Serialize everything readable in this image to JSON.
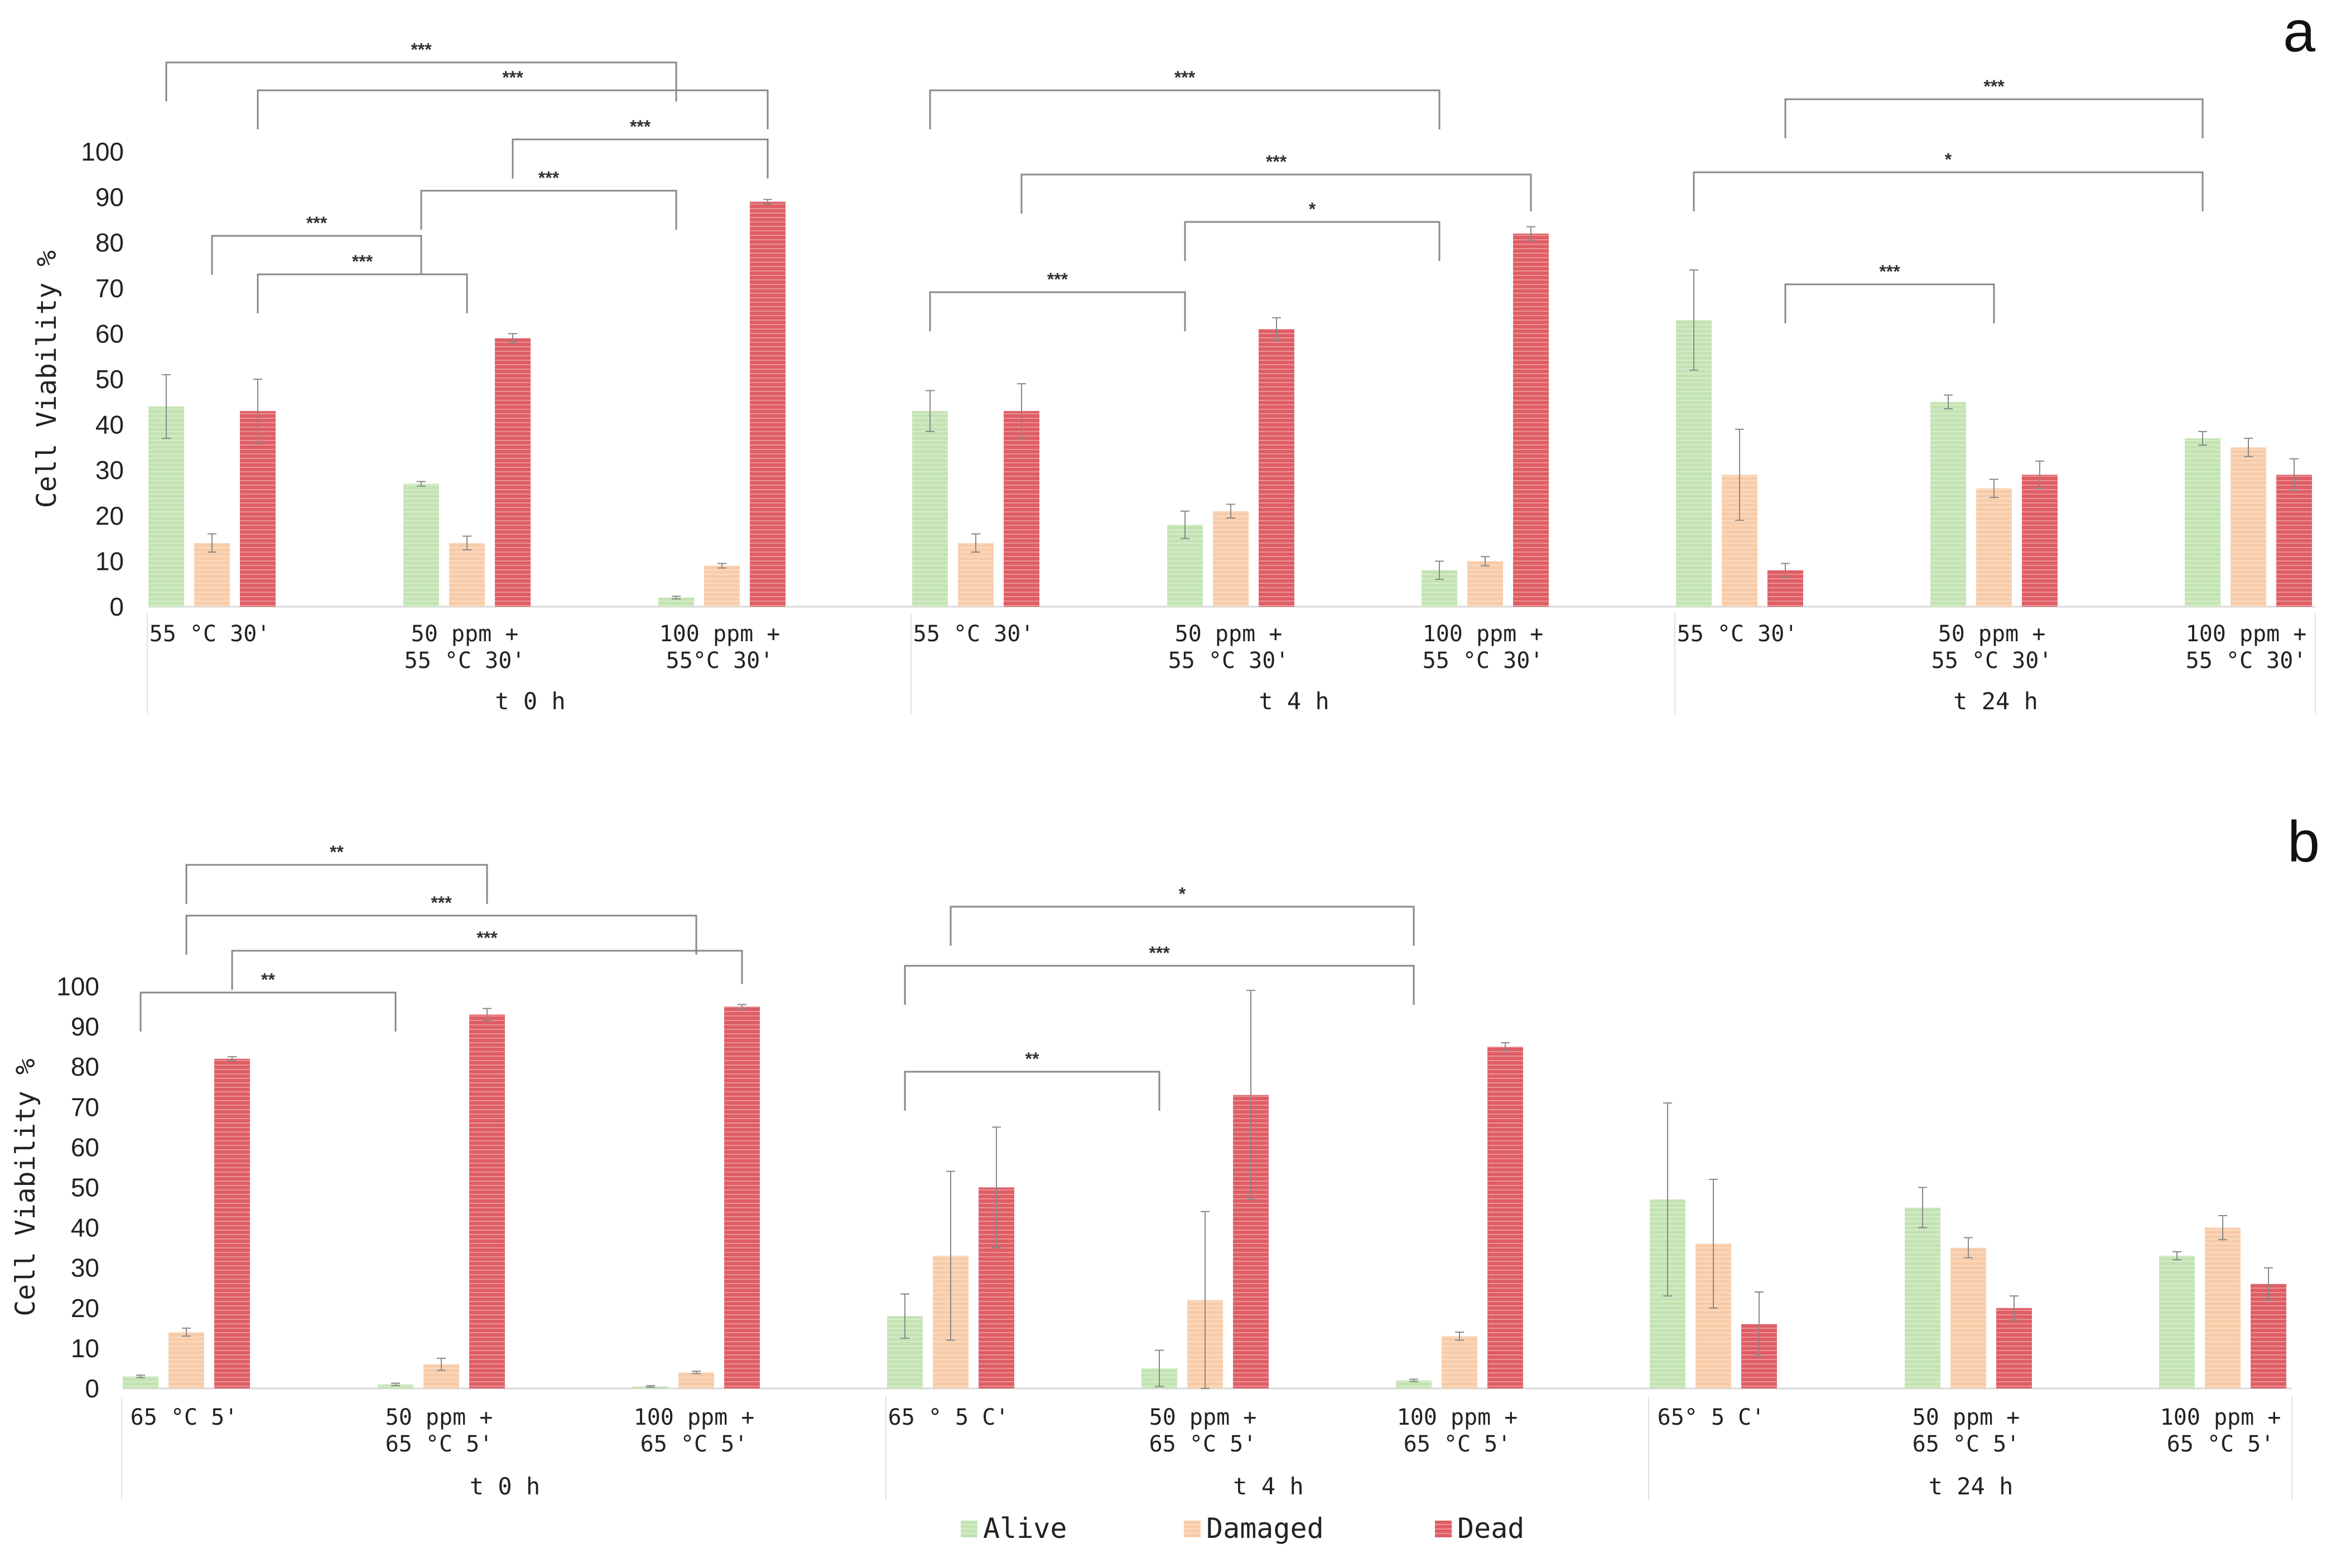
{
  "legend": {
    "items": [
      {
        "label": "Alive",
        "color": "#c4e3b3",
        "pattern": "alive"
      },
      {
        "label": "Damaged",
        "color": "#f8cca9",
        "pattern": "damaged"
      },
      {
        "label": "Dead",
        "color": "#de5e65",
        "pattern": "dead"
      }
    ]
  },
  "chart_data": [
    {
      "type": "bar",
      "panel": "a",
      "ylabel": "Cell Viability %",
      "ylim": [
        0,
        100
      ],
      "yticks": [
        "0",
        "10",
        "20",
        "30",
        "40",
        "50",
        "60",
        "70",
        "80",
        "90",
        "100"
      ],
      "groups": [
        {
          "label": "t 0 h",
          "categories": [
            [
              "55 °C 30'"
            ],
            [
              "50 ppm +",
              "55 °C 30'"
            ],
            [
              "100 ppm +",
              "55°C 30'"
            ]
          ]
        },
        {
          "label": "t 4 h",
          "categories": [
            [
              "55 °C 30'"
            ],
            [
              "50 ppm +",
              "55 °C 30'"
            ],
            [
              "100 ppm +",
              "55 °C 30'"
            ]
          ]
        },
        {
          "label": "t 24 h",
          "categories": [
            [
              "55 °C 30'"
            ],
            [
              "50 ppm +",
              "55 °C 30'"
            ],
            [
              "100 ppm +",
              "55 °C 30'"
            ]
          ]
        }
      ],
      "series": [
        {
          "name": "Alive",
          "values": [
            44,
            27,
            2,
            43,
            18,
            8,
            63,
            45,
            37
          ],
          "errors": [
            7,
            0.5,
            0.3,
            4.5,
            3,
            2,
            11,
            1.5,
            1.5
          ]
        },
        {
          "name": "Damaged",
          "values": [
            14,
            14,
            9,
            14,
            21,
            10,
            29,
            26,
            35
          ],
          "errors": [
            2,
            1.5,
            0.5,
            2,
            1.5,
            1,
            10,
            2,
            2
          ]
        },
        {
          "name": "Dead",
          "values": [
            43,
            59,
            89,
            43,
            61,
            82,
            8,
            29,
            29
          ],
          "errors": [
            7,
            1,
            0.5,
            6,
            2.5,
            1.5,
            1.5,
            3,
            3.5
          ]
        }
      ],
      "significance": [
        {
          "label": "***",
          "from": [
            0,
            "Alive"
          ],
          "to": [
            2,
            "Alive"
          ]
        },
        {
          "label": "***",
          "from": [
            0,
            "Dead"
          ],
          "to": [
            2,
            "Dead"
          ]
        },
        {
          "label": "***",
          "from": [
            1,
            "Dead"
          ],
          "to": [
            2,
            "Dead"
          ]
        },
        {
          "label": "***",
          "from": [
            1,
            "Alive"
          ],
          "to": [
            2,
            "Alive"
          ]
        },
        {
          "label": "***",
          "from": [
            0,
            "Damaged"
          ],
          "to": [
            1,
            "Alive"
          ]
        },
        {
          "label": "***",
          "from": [
            0,
            "Dead"
          ],
          "to": [
            1,
            "Damaged"
          ]
        },
        {
          "label": "***",
          "from": [
            3,
            "Alive"
          ],
          "to": [
            5,
            "Alive"
          ]
        },
        {
          "label": "***",
          "from": [
            3,
            "Dead"
          ],
          "to": [
            5,
            "Dead"
          ]
        },
        {
          "label": "*",
          "from": [
            4,
            "Alive"
          ],
          "to": [
            5,
            "Alive"
          ]
        },
        {
          "label": "***",
          "from": [
            3,
            "Alive"
          ],
          "to": [
            4,
            "Alive"
          ]
        },
        {
          "label": "***",
          "from": [
            6,
            "Dead"
          ],
          "to": [
            8,
            "Alive"
          ]
        },
        {
          "label": "*",
          "from": [
            6,
            "Alive"
          ],
          "to": [
            8,
            "Alive"
          ]
        },
        {
          "label": "***",
          "from": [
            6,
            "Dead"
          ],
          "to": [
            7,
            "Damaged"
          ]
        }
      ]
    },
    {
      "type": "bar",
      "panel": "b",
      "ylabel": "Cell Viability %",
      "ylim": [
        0,
        100
      ],
      "yticks": [
        "0",
        "10",
        "20",
        "30",
        "40",
        "50",
        "60",
        "70",
        "80",
        "90",
        "100"
      ],
      "groups": [
        {
          "label": "t 0 h",
          "categories": [
            [
              "65 °C 5'"
            ],
            [
              "50 ppm +",
              "65 °C 5'"
            ],
            [
              "100 ppm +",
              "65 °C 5'"
            ]
          ]
        },
        {
          "label": "t 4 h",
          "categories": [
            [
              "65 ° 5 C'"
            ],
            [
              "50 ppm +",
              "65 °C 5'"
            ],
            [
              "100 ppm +",
              "65 °C 5'"
            ]
          ]
        },
        {
          "label": "t 24 h",
          "categories": [
            [
              "65° 5 C'"
            ],
            [
              "50 ppm +",
              "65 °C 5'"
            ],
            [
              "100 ppm +",
              "65 °C 5'"
            ]
          ]
        }
      ],
      "series": [
        {
          "name": "Alive",
          "values": [
            3,
            1,
            0.5,
            18,
            5,
            2,
            47,
            45,
            33
          ],
          "errors": [
            0.3,
            0.3,
            0.2,
            5.5,
            4.5,
            0.3,
            24,
            5,
            1
          ]
        },
        {
          "name": "Damaged",
          "values": [
            14,
            6,
            4,
            33,
            22,
            13,
            36,
            35,
            40
          ],
          "errors": [
            1,
            1.5,
            0.3,
            21,
            22,
            1,
            16,
            2.5,
            3
          ]
        },
        {
          "name": "Dead",
          "values": [
            82,
            93,
            95,
            50,
            73,
            85,
            16,
            20,
            26
          ],
          "errors": [
            0.5,
            1.5,
            0.5,
            15,
            26,
            1,
            8,
            3,
            4
          ]
        }
      ],
      "significance": [
        {
          "label": "**",
          "from": [
            0,
            "Damaged"
          ],
          "to": [
            1,
            "Dead"
          ]
        },
        {
          "label": "***",
          "from": [
            0,
            "Damaged"
          ],
          "to": [
            2,
            "Damaged"
          ]
        },
        {
          "label": "***",
          "from": [
            0,
            "Dead"
          ],
          "to": [
            2,
            "Dead"
          ]
        },
        {
          "label": "**",
          "from": [
            0,
            "Alive"
          ],
          "to": [
            1,
            "Alive"
          ]
        },
        {
          "label": "*",
          "from": [
            3,
            "Damaged"
          ],
          "to": [
            5,
            "Alive"
          ]
        },
        {
          "label": "***",
          "from": [
            3,
            "Alive"
          ],
          "to": [
            5,
            "Alive"
          ]
        },
        {
          "label": "**",
          "from": [
            3,
            "Alive"
          ],
          "to": [
            4,
            "Alive"
          ]
        }
      ]
    }
  ]
}
